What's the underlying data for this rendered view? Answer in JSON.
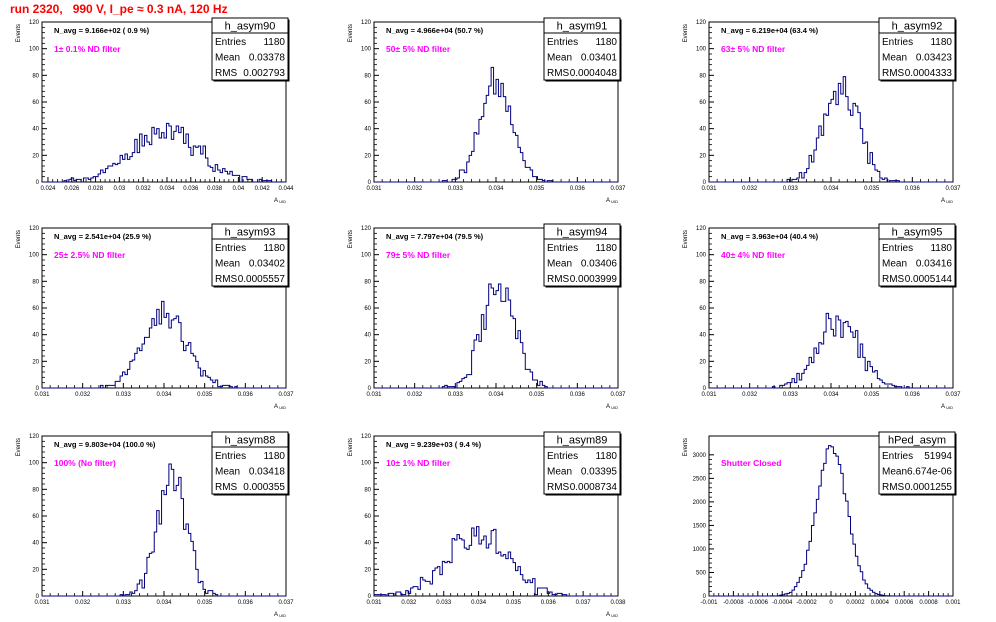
{
  "run_title": "run 2320,   990 V, I_pe ≈ 0.3 nA, 120 Hz",
  "colors": {
    "hist": "#00007f",
    "filter_label": "#ff00ff",
    "title": "#ff0000"
  },
  "chart_data": [
    {
      "type": "bar",
      "name": "h_asym90",
      "ylabel": "Events",
      "xlabel": "A",
      "xlabel_sub": "UID",
      "navg": "N_avg = 9.166e+02 ( 0.9 %)",
      "filter": "1± 0.1% ND filter",
      "stats": [
        [
          "Entries",
          "1180"
        ],
        [
          "Mean",
          "0.03378"
        ],
        [
          "RMS",
          "0.002793"
        ]
      ],
      "xlim": [
        0.0235,
        0.044
      ],
      "ylim": [
        0,
        120
      ],
      "xticks": [
        0.024,
        0.026,
        0.028,
        0.03,
        0.032,
        0.034,
        0.036,
        0.038,
        0.04,
        0.042,
        0.044
      ],
      "xtick_labels": [
        "0.024",
        "0.026",
        "0.028",
        "0.03",
        "0.032",
        "0.034",
        "0.036",
        "0.038",
        "0.04",
        "0.042",
        "0.044"
      ],
      "yticks": [
        0,
        20,
        40,
        60,
        80,
        100,
        120
      ],
      "ytick_labels": [
        "0",
        "20",
        "40",
        "60",
        "80",
        "100",
        "120"
      ],
      "mean": 0.03378,
      "sigma": 0.002793,
      "peak": 40
    },
    {
      "type": "bar",
      "name": "h_asym91",
      "ylabel": "Events",
      "xlabel": "A",
      "xlabel_sub": "UID",
      "navg": "N_avg = 4.966e+04 (50.7 %)",
      "filter": "50± 5% ND filter",
      "stats": [
        [
          "Entries",
          "1180"
        ],
        [
          "Mean",
          "0.03401"
        ],
        [
          "RMS",
          "0.0004048"
        ]
      ],
      "xlim": [
        0.031,
        0.037
      ],
      "ylim": [
        0,
        120
      ],
      "xticks": [
        0.031,
        0.032,
        0.033,
        0.034,
        0.035,
        0.036,
        0.037
      ],
      "xtick_labels": [
        "0.031",
        "0.032",
        "0.033",
        "0.034",
        "0.035",
        "0.036",
        "0.037"
      ],
      "yticks": [
        0,
        20,
        40,
        60,
        80,
        100,
        120
      ],
      "ytick_labels": [
        "0",
        "20",
        "40",
        "60",
        "80",
        "100",
        "120"
      ],
      "mean": 0.03401,
      "sigma": 0.0004048,
      "peak": 74
    },
    {
      "type": "bar",
      "name": "h_asym92",
      "ylabel": "Events",
      "xlabel": "A",
      "xlabel_sub": "UID",
      "navg": "N_avg = 6.219e+04 (63.4 %)",
      "filter": "63± 5% ND filter",
      "stats": [
        [
          "Entries",
          "1180"
        ],
        [
          "Mean",
          "0.03423"
        ],
        [
          "RMS",
          "0.0004333"
        ]
      ],
      "xlim": [
        0.031,
        0.037
      ],
      "ylim": [
        0,
        120
      ],
      "xticks": [
        0.031,
        0.032,
        0.033,
        0.034,
        0.035,
        0.036,
        0.037
      ],
      "xtick_labels": [
        "0.031",
        "0.032",
        "0.033",
        "0.034",
        "0.035",
        "0.036",
        "0.037"
      ],
      "yticks": [
        0,
        20,
        40,
        60,
        80,
        100,
        120
      ],
      "ytick_labels": [
        "0",
        "20",
        "40",
        "60",
        "80",
        "100",
        "120"
      ],
      "mean": 0.03423,
      "sigma": 0.0004333,
      "peak": 68
    },
    {
      "type": "bar",
      "name": "h_asym93",
      "ylabel": "Events",
      "xlabel": "A",
      "xlabel_sub": "UID",
      "navg": "N_avg = 2.541e+04 (25.9 %)",
      "filter": "25± 2.5% ND filter",
      "stats": [
        [
          "Entries",
          "1180"
        ],
        [
          "Mean",
          "0.03402"
        ],
        [
          "RMS",
          "0.0005557"
        ]
      ],
      "xlim": [
        0.031,
        0.037
      ],
      "ylim": [
        0,
        120
      ],
      "xticks": [
        0.031,
        0.032,
        0.033,
        0.034,
        0.035,
        0.036,
        0.037
      ],
      "xtick_labels": [
        "0.031",
        "0.032",
        "0.033",
        "0.034",
        "0.035",
        "0.036",
        "0.037"
      ],
      "yticks": [
        0,
        20,
        40,
        60,
        80,
        100,
        120
      ],
      "ytick_labels": [
        "0",
        "20",
        "40",
        "60",
        "80",
        "100",
        "120"
      ],
      "mean": 0.03402,
      "sigma": 0.0005557,
      "peak": 54
    },
    {
      "type": "bar",
      "name": "h_asym94",
      "ylabel": "Events",
      "xlabel": "A",
      "xlabel_sub": "UID",
      "navg": "N_avg = 7.797e+04 (79.5 %)",
      "filter": "79± 5% ND filter",
      "stats": [
        [
          "Entries",
          "1180"
        ],
        [
          "Mean",
          "0.03406"
        ],
        [
          "RMS",
          "0.0003999"
        ]
      ],
      "xlim": [
        0.031,
        0.037
      ],
      "ylim": [
        0,
        120
      ],
      "xticks": [
        0.031,
        0.032,
        0.033,
        0.034,
        0.035,
        0.036,
        0.037
      ],
      "xtick_labels": [
        "0.031",
        "0.032",
        "0.033",
        "0.034",
        "0.035",
        "0.036",
        "0.037"
      ],
      "yticks": [
        0,
        20,
        40,
        60,
        80,
        100,
        120
      ],
      "ytick_labels": [
        "0",
        "20",
        "40",
        "60",
        "80",
        "100",
        "120"
      ],
      "mean": 0.03406,
      "sigma": 0.0003999,
      "peak": 76
    },
    {
      "type": "bar",
      "name": "h_asym95",
      "ylabel": "Events",
      "xlabel": "A",
      "xlabel_sub": "UID",
      "navg": "N_avg = 3.963e+04 (40.4 %)",
      "filter": "40± 4% ND filter",
      "stats": [
        [
          "Entries",
          "1180"
        ],
        [
          "Mean",
          "0.03416"
        ],
        [
          "RMS",
          "0.0005144"
        ]
      ],
      "xlim": [
        0.031,
        0.037
      ],
      "ylim": [
        0,
        120
      ],
      "xticks": [
        0.031,
        0.032,
        0.033,
        0.034,
        0.035,
        0.036,
        0.037
      ],
      "xtick_labels": [
        "0.031",
        "0.032",
        "0.033",
        "0.034",
        "0.035",
        "0.036",
        "0.037"
      ],
      "yticks": [
        0,
        20,
        40,
        60,
        80,
        100,
        120
      ],
      "ytick_labels": [
        "0",
        "20",
        "40",
        "60",
        "80",
        "100",
        "120"
      ],
      "mean": 0.03416,
      "sigma": 0.0005144,
      "peak": 50
    },
    {
      "type": "bar",
      "name": "h_asym88",
      "ylabel": "Events",
      "xlabel": "A",
      "xlabel_sub": "UID",
      "navg": "N_avg = 9.803e+04 (100.0 %)",
      "filter": "100% (No filter)",
      "stats": [
        [
          "Entries",
          "1180"
        ],
        [
          "Mean",
          "0.03418"
        ],
        [
          "RMS",
          "0.000355"
        ]
      ],
      "xlim": [
        0.031,
        0.037
      ],
      "ylim": [
        0,
        120
      ],
      "xticks": [
        0.031,
        0.032,
        0.033,
        0.034,
        0.035,
        0.036,
        0.037
      ],
      "xtick_labels": [
        "0.031",
        "0.032",
        "0.033",
        "0.034",
        "0.035",
        "0.036",
        "0.037"
      ],
      "yticks": [
        0,
        20,
        40,
        60,
        80,
        100,
        120
      ],
      "ytick_labels": [
        "0",
        "20",
        "40",
        "60",
        "80",
        "100",
        "120"
      ],
      "mean": 0.03418,
      "sigma": 0.000355,
      "peak": 88
    },
    {
      "type": "bar",
      "name": "h_asym89",
      "ylabel": "Events",
      "xlabel": "A",
      "xlabel_sub": "UID",
      "navg": "N_avg = 9.239e+03 ( 9.4 %)",
      "filter": "10± 1% ND filter",
      "stats": [
        [
          "Entries",
          "1180"
        ],
        [
          "Mean",
          "0.03395"
        ],
        [
          "RMS",
          "0.0008734"
        ]
      ],
      "xlim": [
        0.031,
        0.038
      ],
      "ylim": [
        0,
        120
      ],
      "xticks": [
        0.031,
        0.032,
        0.033,
        0.034,
        0.035,
        0.036,
        0.037,
        0.038
      ],
      "xtick_labels": [
        "0.031",
        "0.032",
        "0.033",
        "0.034",
        "0.035",
        "0.036",
        "0.037",
        "0.038"
      ],
      "yticks": [
        0,
        20,
        40,
        60,
        80,
        100,
        120
      ],
      "ytick_labels": [
        "0",
        "20",
        "40",
        "60",
        "80",
        "100",
        "120"
      ],
      "mean": 0.03395,
      "sigma": 0.0008734,
      "peak": 46
    },
    {
      "type": "bar",
      "name": "hPed_asym",
      "ylabel": "Events",
      "xlabel": "",
      "xlabel_sub": "",
      "navg": "",
      "filter": "Shutter Closed",
      "stats": [
        [
          "Entries",
          "51994"
        ],
        [
          "Mean",
          "6.674e-06"
        ],
        [
          "RMS",
          "0.0001255"
        ]
      ],
      "xlim": [
        -0.001,
        0.001
      ],
      "ylim": [
        0,
        3400
      ],
      "xticks": [
        -0.001,
        -0.0008,
        -0.0006,
        -0.0004,
        -0.0002,
        0,
        0.0002,
        0.0004,
        0.0006,
        0.0008,
        0.001
      ],
      "xtick_labels": [
        "-0.001",
        "-0.0008",
        "-0.0006",
        "-0.0004",
        "-0.0002",
        "0",
        "0.0002",
        "0.0004",
        "0.0006",
        "0.0008",
        "0.001"
      ],
      "yticks": [
        0,
        500,
        1000,
        1500,
        2000,
        2500,
        3000
      ],
      "ytick_labels": [
        "0",
        "500",
        "1000",
        "1500",
        "2000",
        "2500",
        "3000"
      ],
      "mean": 6.674e-06,
      "sigma": 0.0001255,
      "peak": 3180
    }
  ]
}
